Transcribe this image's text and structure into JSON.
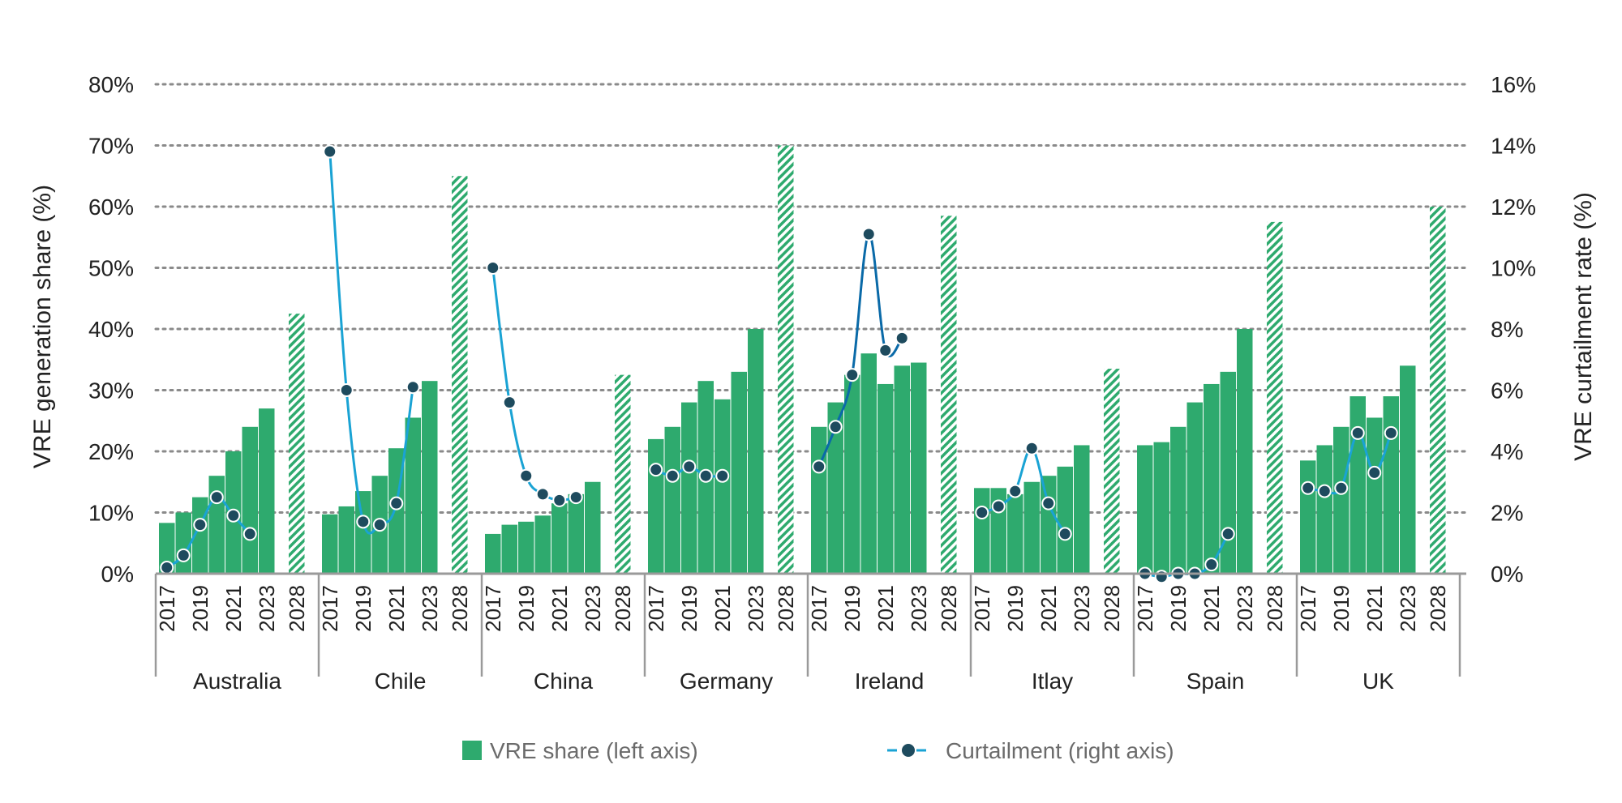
{
  "colors": {
    "bar": "#2eaa6e",
    "forecast_hatch": "#2eaa6e",
    "line_light": "#1aa3d4",
    "line_dark": "#0a6aa8",
    "marker": "#1e4b5e",
    "grid": "#8a8a8a",
    "axis": "#9a9a9a"
  },
  "chart_data": {
    "type": "bar",
    "left_axis_label": "VRE generation share (%)",
    "right_axis_label": "VRE curtailment rate (%)",
    "left_ticks": [
      "0%",
      "10%",
      "20%",
      "30%",
      "40%",
      "50%",
      "60%",
      "70%",
      "80%"
    ],
    "right_ticks": [
      "0%",
      "2%",
      "4%",
      "6%",
      "8%",
      "10%",
      "12%",
      "14%",
      "16%"
    ],
    "ylim_left": [
      0,
      80
    ],
    "ylim_right": [
      0,
      16
    ],
    "grid": true,
    "x_tick_labels": [
      "2017",
      "2019",
      "2021",
      "2023",
      "2028"
    ],
    "years": [
      2017,
      2018,
      2019,
      2020,
      2021,
      2022,
      2023,
      2028
    ],
    "legend": {
      "position": "bottom",
      "bar_label": "VRE share (left axis)",
      "line_label": "Curtailment (right axis)"
    },
    "series_names": [
      "VRE share (left axis)",
      "Curtailment (right axis)"
    ],
    "groups": [
      {
        "country": "Australia",
        "vre_share": [
          8.3,
          10.0,
          12.5,
          16.0,
          20.0,
          24.0,
          27.0,
          42.5
        ],
        "curtailment": [
          0.2,
          0.6,
          1.6,
          2.5,
          1.9,
          1.3,
          null,
          null
        ]
      },
      {
        "country": "Chile",
        "vre_share": [
          9.7,
          11.0,
          13.5,
          16.0,
          20.5,
          25.5,
          31.5,
          65.0
        ],
        "curtailment": [
          13.8,
          6.0,
          1.7,
          1.6,
          2.3,
          6.1,
          null,
          null
        ]
      },
      {
        "country": "China",
        "vre_share": [
          6.5,
          8.0,
          8.5,
          9.5,
          11.5,
          13.0,
          15.0,
          32.5
        ],
        "curtailment": [
          10.0,
          5.6,
          3.2,
          2.6,
          2.4,
          2.5,
          null,
          null
        ]
      },
      {
        "country": "Germany",
        "vre_share": [
          22.0,
          24.0,
          28.0,
          31.5,
          28.5,
          33.0,
          40.0,
          70.0
        ],
        "curtailment": [
          3.4,
          3.2,
          3.5,
          3.2,
          3.2,
          null,
          null,
          null
        ]
      },
      {
        "country": "Ireland",
        "vre_share": [
          24.0,
          28.0,
          32.5,
          36.0,
          31.0,
          34.0,
          34.5,
          58.5
        ],
        "curtailment": [
          3.5,
          4.8,
          6.5,
          11.1,
          7.3,
          7.7,
          null,
          null
        ]
      },
      {
        "country": "Itlay",
        "vre_share": [
          14.0,
          14.0,
          13.0,
          15.0,
          16.0,
          17.5,
          21.0,
          33.5
        ],
        "curtailment": [
          2.0,
          2.2,
          2.7,
          4.1,
          2.3,
          1.3,
          null,
          null
        ]
      },
      {
        "country": "Spain",
        "vre_share": [
          21.0,
          21.5,
          24.0,
          28.0,
          31.0,
          33.0,
          40.0,
          57.5
        ],
        "curtailment": [
          0.0,
          -0.1,
          0.0,
          0.0,
          0.3,
          1.3,
          null,
          null
        ]
      },
      {
        "country": "UK",
        "vre_share": [
          18.5,
          21.0,
          24.0,
          29.0,
          25.5,
          29.0,
          34.0,
          60.0
        ],
        "curtailment": [
          2.8,
          2.7,
          2.8,
          4.6,
          3.3,
          4.6,
          null,
          null
        ]
      }
    ]
  }
}
